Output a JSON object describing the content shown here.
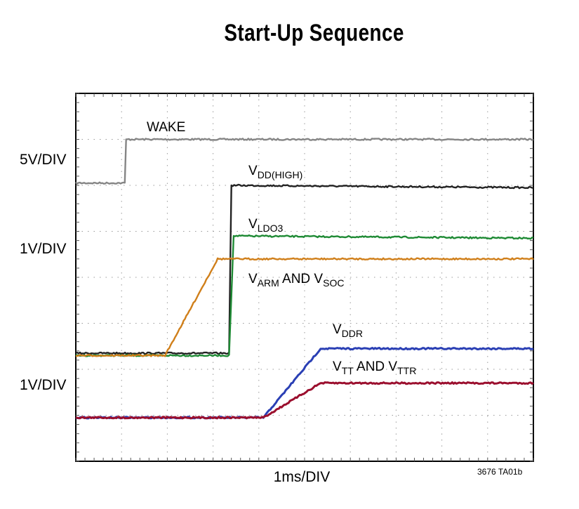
{
  "chart_data": {
    "type": "line",
    "title": "Start-Up Sequence",
    "xlabel": "1ms/DIV",
    "figure_code": "3676 TA01b",
    "scale_labels": [
      "5V/DIV",
      "1V/DIV",
      "1V/DIV"
    ],
    "grid": true,
    "xlim": [
      0,
      10
    ],
    "ylim": [
      0,
      8
    ],
    "series": [
      {
        "name": "WAKE",
        "name_main": "WAKE",
        "name_sub": "",
        "name_tail": "",
        "name_sub2": "",
        "color": "#858585",
        "x": [
          0,
          1.07,
          1.1,
          10
        ],
        "y": [
          6.05,
          6.05,
          7.0,
          7.0
        ]
      },
      {
        "name": "VDD(HIGH)",
        "name_main": "V",
        "name_sub": "DD(HIGH)",
        "name_tail": "",
        "name_sub2": "",
        "color": "#222222",
        "x": [
          0,
          3.35,
          3.4,
          10
        ],
        "y": [
          2.35,
          2.35,
          6.0,
          5.95
        ]
      },
      {
        "name": "VLDO3",
        "name_main": "V",
        "name_sub": "LDO3",
        "name_tail": "",
        "name_sub2": "",
        "color": "#1e8a34",
        "x": [
          0,
          3.35,
          3.45,
          10
        ],
        "y": [
          2.3,
          2.3,
          4.9,
          4.85
        ]
      },
      {
        "name": "VARM AND VSOC",
        "name_main": "V",
        "name_sub": "ARM",
        "name_tail": " AND V",
        "name_sub2": "SOC",
        "color": "#d07f1a",
        "x": [
          0,
          1.95,
          3.1,
          10
        ],
        "y": [
          2.3,
          2.3,
          4.4,
          4.4
        ]
      },
      {
        "name": "VDDR",
        "name_main": "V",
        "name_sub": "DDR",
        "name_tail": "",
        "name_sub2": "",
        "color": "#2a3fb4",
        "x": [
          0,
          4.1,
          5.35,
          10
        ],
        "y": [
          0.95,
          0.95,
          2.45,
          2.45
        ]
      },
      {
        "name": "VTT AND VTTR",
        "name_main": "V",
        "name_sub": "TT",
        "name_tail": " AND V",
        "name_sub2": "TTR",
        "color": "#9b0f2e",
        "x": [
          0,
          4.1,
          5.35,
          10
        ],
        "y": [
          0.95,
          0.95,
          1.7,
          1.7
        ]
      }
    ]
  }
}
